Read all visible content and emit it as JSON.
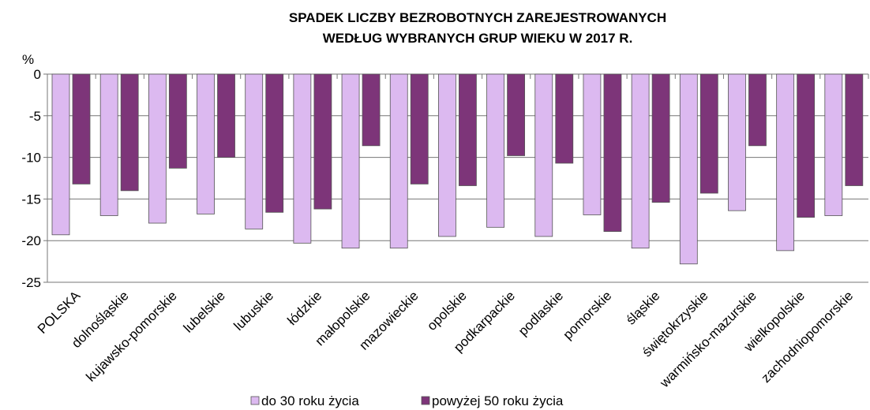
{
  "chart_data": {
    "type": "bar",
    "title": [
      "SPADEK LICZBY BEZROBOTNYCH ZAREJESTROWANYCH",
      "WEDŁUG WYBRANYCH GRUP WIEKU W 2017 R."
    ],
    "y_label": "%",
    "categories": [
      "POLSKA",
      "dolnośląskie",
      "kujawsko-pomorskie",
      "lubelskie",
      "lubuskie",
      "łódzkie",
      "małopolskie",
      "mazowieckie",
      "opolskie",
      "podkarpackie",
      "podlaskie",
      "pomorskie",
      "śląskie",
      "świętokrzyskie",
      "warmińsko-mazurskie",
      "wielkopolskie",
      "zachodniopomorskie"
    ],
    "series": [
      {
        "name": "do 30 roku życia",
        "color": "#dcb9f0",
        "values": [
          -19.3,
          -17.0,
          -17.9,
          -16.8,
          -18.6,
          -20.3,
          -20.9,
          -20.9,
          -19.5,
          -18.4,
          -19.5,
          -16.9,
          -20.9,
          -22.8,
          -16.4,
          -21.2,
          -17.0
        ]
      },
      {
        "name": "powyżej 50 roku życia",
        "color": "#7d3579",
        "values": [
          -13.2,
          -14.0,
          -11.3,
          -10.0,
          -16.6,
          -16.2,
          -8.6,
          -13.2,
          -13.4,
          -9.8,
          -10.7,
          -18.9,
          -15.4,
          -14.3,
          -8.6,
          -17.2,
          -13.4
        ]
      }
    ],
    "ylim": [
      -25,
      0
    ],
    "yticks": [
      0,
      -5,
      -10,
      -15,
      -20,
      -25
    ],
    "grid": true
  }
}
